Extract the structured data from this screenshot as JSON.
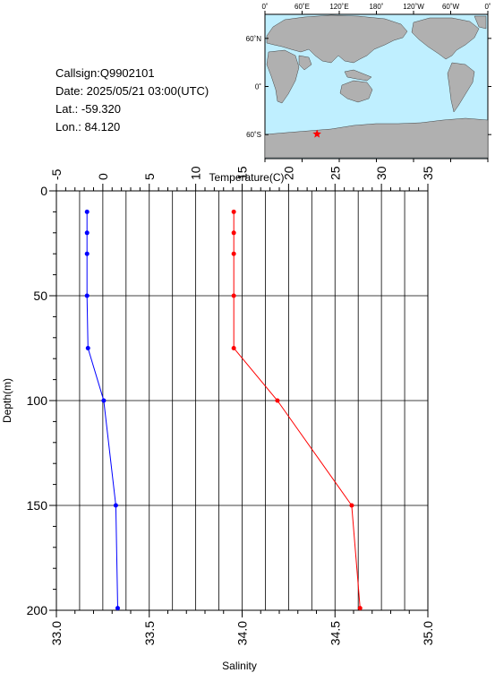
{
  "station": {
    "callsign": "Callsign:Q9902101",
    "date": "Date:  2025/05/21 03:00(UTC)",
    "lat": "Lat.:  -59.320",
    "lon": "Lon.:   84.120"
  },
  "map": {
    "lon_labels": [
      "0˚",
      "60˚E",
      "120˚E",
      "180˚",
      "120˚W",
      "60˚W",
      "0˚"
    ],
    "lat_labels": [
      "60˚N",
      "0˚",
      "60˚S"
    ],
    "marker": {
      "lat": -59.32,
      "lon": 84.12,
      "color": "#ff0000"
    },
    "ocean_color": "#bfefff",
    "land_color": "#b0b0b0"
  },
  "chart_data": {
    "type": "line",
    "xlabel_top": "Temperature(C)",
    "xlabel_bottom": "Salinity",
    "ylabel": "Depth(m)",
    "ylim": [
      0,
      200
    ],
    "yticks": [
      0,
      50,
      100,
      150,
      200
    ],
    "temp_lim": [
      -5,
      35
    ],
    "temp_ticks": [
      -5,
      0,
      5,
      10,
      15,
      20,
      25,
      30,
      35
    ],
    "sal_lim": [
      33.0,
      35.0
    ],
    "sal_ticks": [
      "33.0",
      "33.5",
      "34.0",
      "34.5",
      "35.0"
    ],
    "grid": true,
    "series": [
      {
        "quantity": "temperature",
        "color": "#ff0000",
        "points": [
          {
            "depth": 10,
            "value": 14.1
          },
          {
            "depth": 20,
            "value": 14.1
          },
          {
            "depth": 30,
            "value": 14.1
          },
          {
            "depth": 50,
            "value": 14.1
          },
          {
            "depth": 75,
            "value": 14.1
          },
          {
            "depth": 100,
            "value": 18.8
          },
          {
            "depth": 150,
            "value": 26.8
          },
          {
            "depth": 199,
            "value": 27.7
          }
        ]
      },
      {
        "quantity": "salinity",
        "color": "#0000ff",
        "points": [
          {
            "depth": 10,
            "value": 33.165
          },
          {
            "depth": 20,
            "value": 33.165
          },
          {
            "depth": 30,
            "value": 33.165
          },
          {
            "depth": 50,
            "value": 33.165
          },
          {
            "depth": 75,
            "value": 33.17
          },
          {
            "depth": 100,
            "value": 33.255
          },
          {
            "depth": 150,
            "value": 33.32
          },
          {
            "depth": 199,
            "value": 33.33
          }
        ]
      }
    ]
  }
}
